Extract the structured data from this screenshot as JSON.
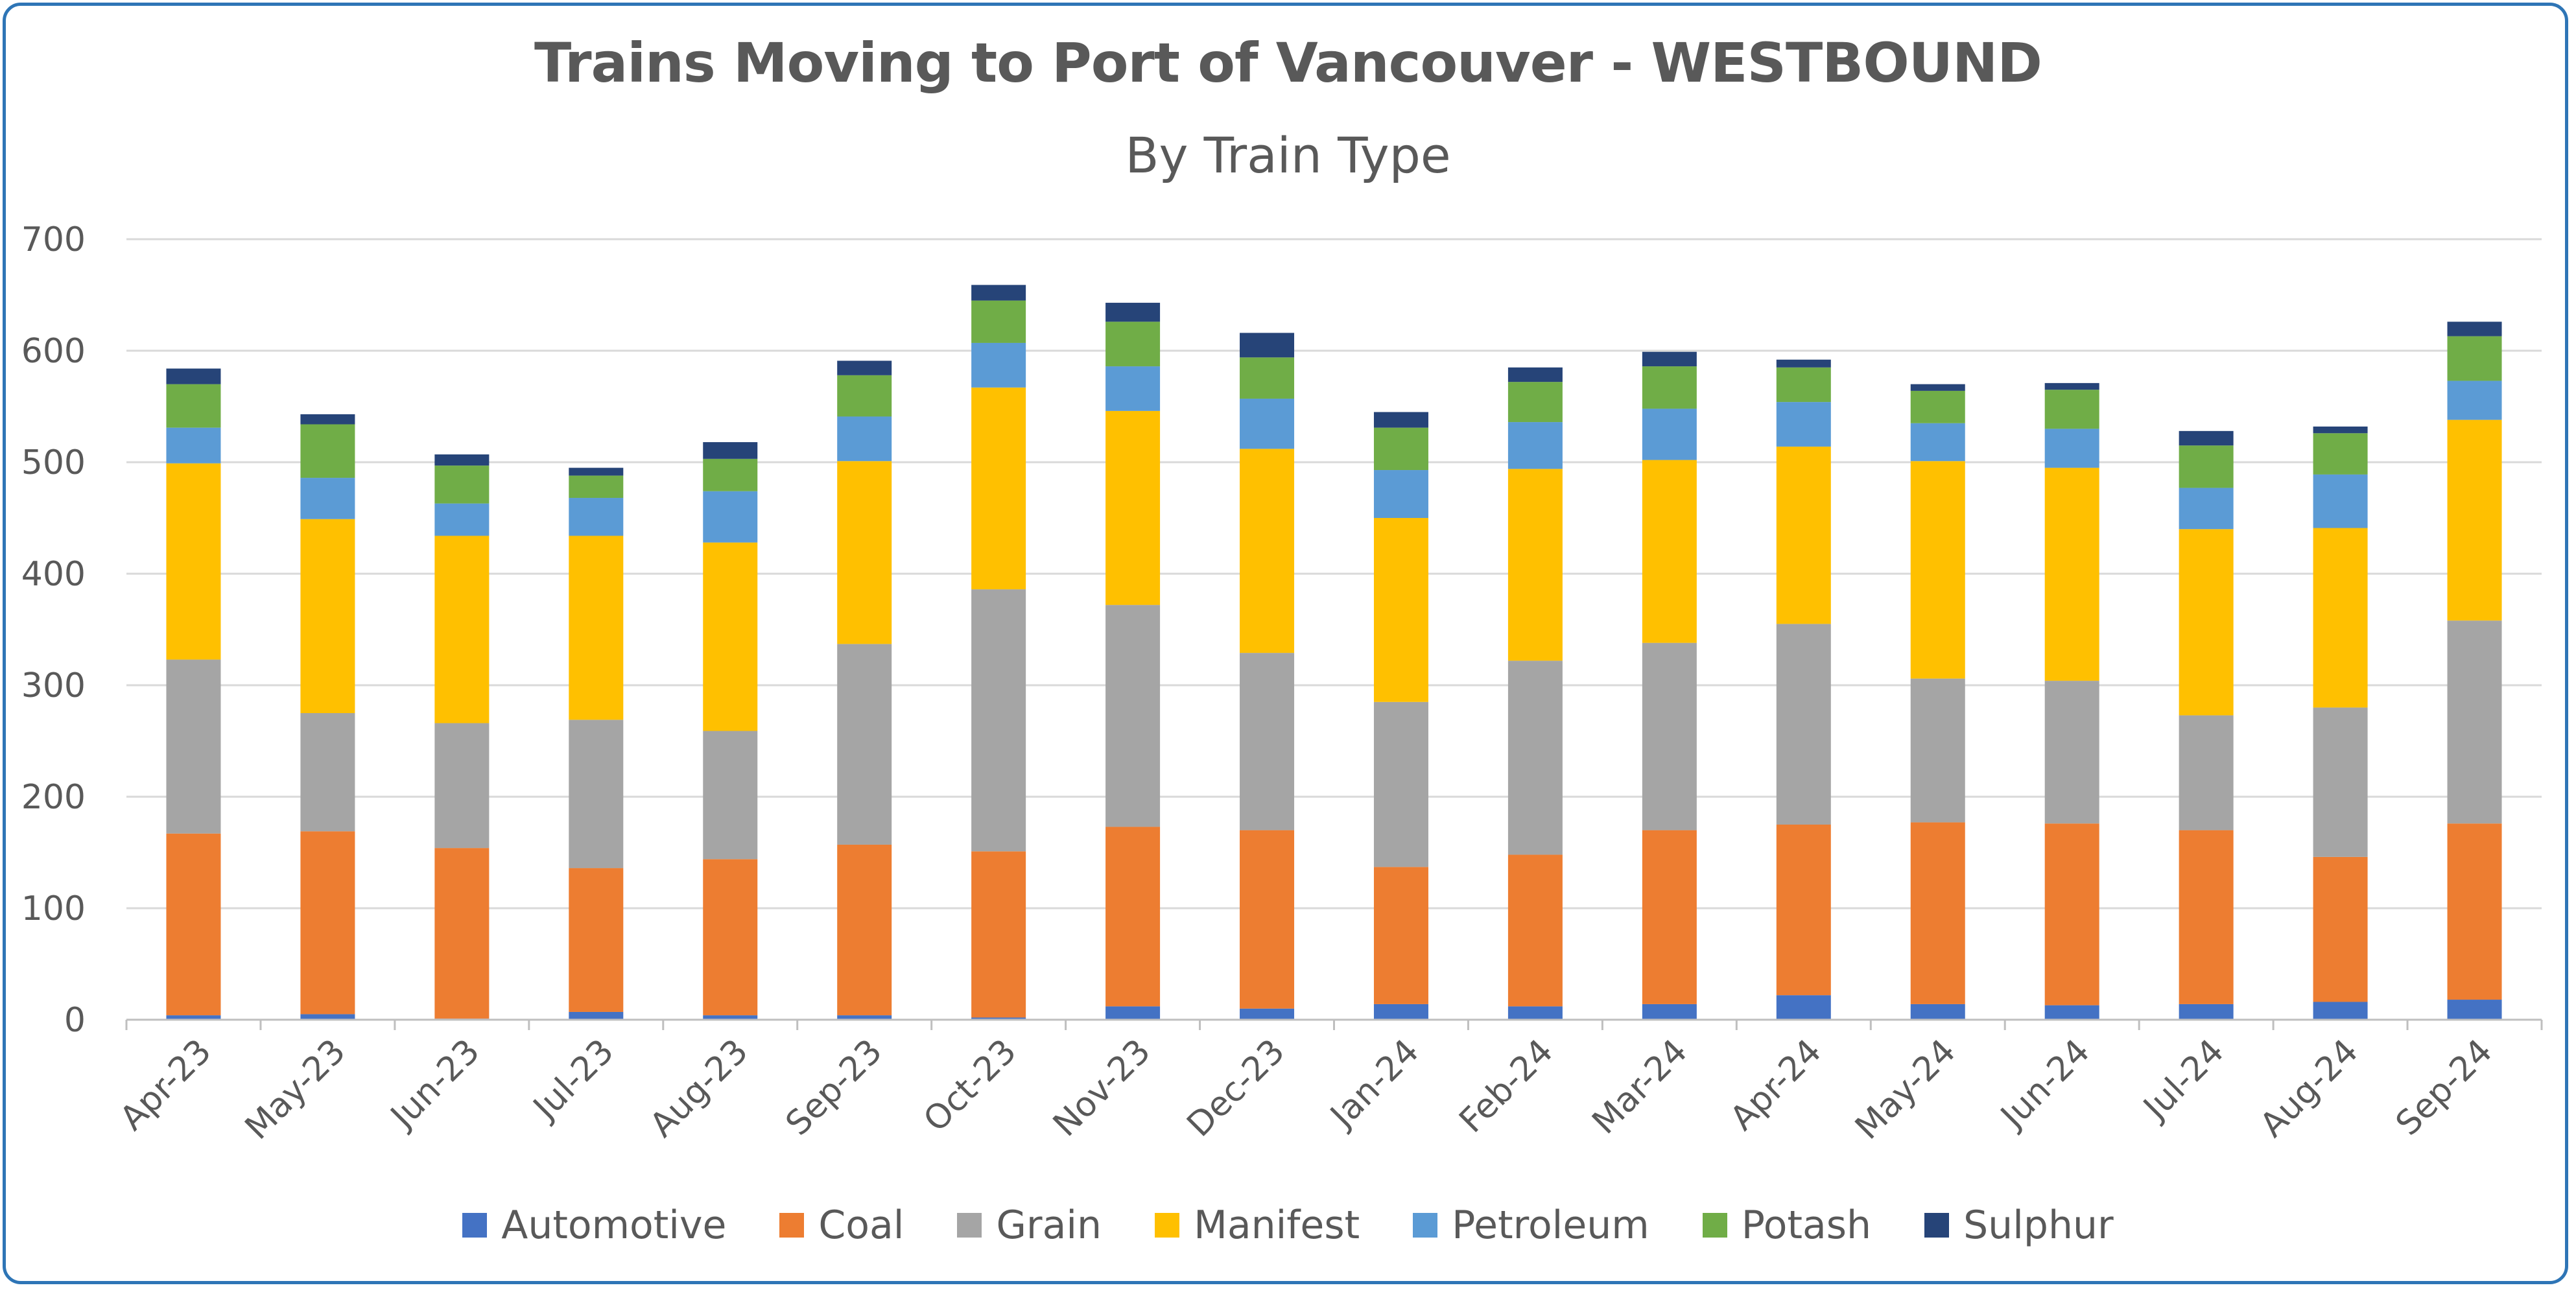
{
  "chart_data": {
    "type": "bar",
    "stacked": true,
    "title": "Trains Moving to Port of Vancouver - WESTBOUND",
    "subtitle": "By Train Type",
    "xlabel": "",
    "ylabel": "",
    "ylim": [
      0,
      700
    ],
    "yticks": [
      0,
      100,
      200,
      300,
      400,
      500,
      600,
      700
    ],
    "grid": true,
    "legend_position": "bottom",
    "categories": [
      "Apr-23",
      "May-23",
      "Jun-23",
      "Jul-23",
      "Aug-23",
      "Sep-23",
      "Oct-23",
      "Nov-23",
      "Dec-23",
      "Jan-24",
      "Feb-24",
      "Mar-24",
      "Apr-24",
      "May-24",
      "Jun-24",
      "Jul-24",
      "Aug-24",
      "Sep-24"
    ],
    "series": [
      {
        "name": "Automotive",
        "color": "#4472c4",
        "values": [
          4,
          5,
          1,
          7,
          4,
          4,
          2,
          12,
          10,
          14,
          12,
          14,
          22,
          14,
          13,
          14,
          16,
          18
        ]
      },
      {
        "name": "Coal",
        "color": "#ed7d31",
        "values": [
          163,
          164,
          153,
          129,
          140,
          153,
          149,
          161,
          160,
          123,
          136,
          156,
          153,
          163,
          163,
          156,
          130,
          158
        ]
      },
      {
        "name": "Grain",
        "color": "#a5a5a5",
        "values": [
          156,
          106,
          112,
          133,
          115,
          180,
          235,
          199,
          159,
          148,
          174,
          168,
          180,
          129,
          128,
          103,
          134,
          182
        ]
      },
      {
        "name": "Manifest",
        "color": "#ffc000",
        "values": [
          176,
          174,
          168,
          165,
          169,
          164,
          181,
          174,
          183,
          165,
          172,
          164,
          159,
          195,
          191,
          167,
          161,
          180
        ]
      },
      {
        "name": "Petroleum",
        "color": "#5b9bd5",
        "values": [
          32,
          37,
          29,
          34,
          46,
          40,
          40,
          40,
          45,
          43,
          42,
          46,
          40,
          34,
          35,
          37,
          48,
          35
        ]
      },
      {
        "name": "Potash",
        "color": "#70ad47",
        "values": [
          39,
          48,
          34,
          20,
          29,
          37,
          38,
          40,
          37,
          38,
          36,
          38,
          31,
          29,
          35,
          38,
          37,
          40
        ]
      },
      {
        "name": "Sulphur",
        "color": "#264478",
        "values": [
          14,
          9,
          10,
          7,
          15,
          13,
          14,
          17,
          22,
          14,
          13,
          13,
          7,
          6,
          6,
          13,
          6,
          13
        ]
      }
    ]
  }
}
